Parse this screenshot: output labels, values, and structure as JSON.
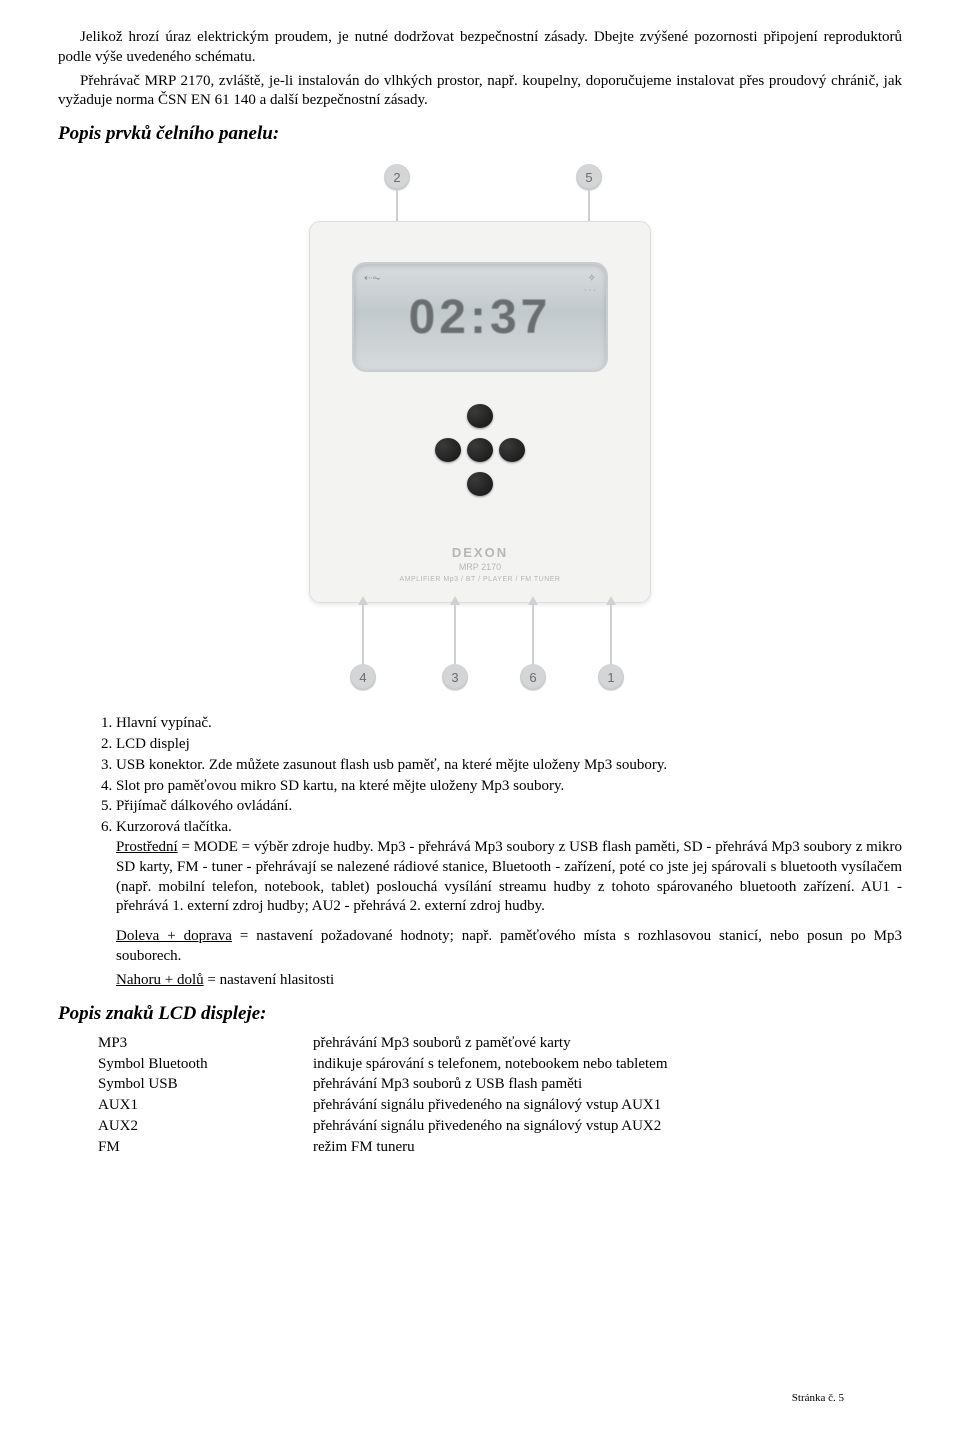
{
  "intro": {
    "p1": "Jelikož hrozí úraz elektrickým proudem, je nutné dodržovat bezpečnostní zásady. Dbejte zvýšené pozornosti připojení reproduktorů podle výše uvedeného schématu.",
    "p2": "Přehrávač MRP 2170, zvláště, je-li instalován do vlhkých prostor, např. koupelny, doporučujeme instalovat přes proudový chránič, jak vyžaduje norma ČSN EN 61 140 a další bezpečnostní zásady."
  },
  "section1_title": "Popis prvků čelního panelu:",
  "device": {
    "lcd_sample": "02:37",
    "brand": "DEXON",
    "model": "MRP 2170",
    "subline": "AMPLIFIER Mp3 / BT / PLAYER / FM TUNER"
  },
  "callouts": {
    "c1": "1",
    "c2": "2",
    "c3": "3",
    "c4": "4",
    "c5": "5",
    "c6": "6"
  },
  "list": {
    "i1": "Hlavní vypínač.",
    "i2": "LCD displej",
    "i3": "USB konektor. Zde můžete zasunout flash usb paměť, na které mějte uloženy Mp3 soubory.",
    "i4": "Slot pro paměťovou mikro SD kartu, na které mějte uloženy Mp3 soubory.",
    "i5": "Přijímač dálkového ovládání.",
    "i6": "Kurzorová tlačítka.",
    "i6a_label": "Prostřední",
    "i6a_text": " =  MODE = výběr zdroje hudby. Mp3 - přehrává Mp3 soubory z USB flash paměti, SD - přehrává Mp3 soubory z mikro SD karty, FM - tuner - přehrávají se nalezené rádiové stanice, Bluetooth - zařízení, poté co jste jej spárovali s bluetooth vysílačem (např. mobilní telefon, notebook, tablet)  poslouchá vysílání streamu hudby z tohoto spárovaného bluetooth zařízení. AU1 - přehrává 1. externí zdroj hudby; AU2 - přehrává 2. externí zdroj hudby.",
    "i6b_label": "Doleva + doprava",
    "i6b_text": " = nastavení požadované hodnoty; např. paměťového místa s rozhlasovou stanicí, nebo posun po Mp3 souborech.",
    "i6c_label": "Nahoru + dolů",
    "i6c_text": " = nastavení hlasitosti"
  },
  "section2_title": "Popis znaků LCD displeje:",
  "lcd_table": [
    {
      "k": "MP3",
      "v": "přehrávání Mp3 souborů z paměťové karty"
    },
    {
      "k": "Symbol Bluetooth",
      "v": "indikuje spárování s telefonem, notebookem nebo tabletem"
    },
    {
      "k": "Symbol USB",
      "v": "přehrávání Mp3 souborů z USB flash paměti"
    },
    {
      "k": "AUX1",
      "v": "přehrávání signálu přivedeného na signálový vstup AUX1"
    },
    {
      "k": "AUX2",
      "v": "přehrávání signálu přivedeného na signálový vstup AUX2"
    },
    {
      "k": "FM",
      "v": "režim FM tuneru"
    }
  ],
  "page_number": "Stránka č. 5"
}
